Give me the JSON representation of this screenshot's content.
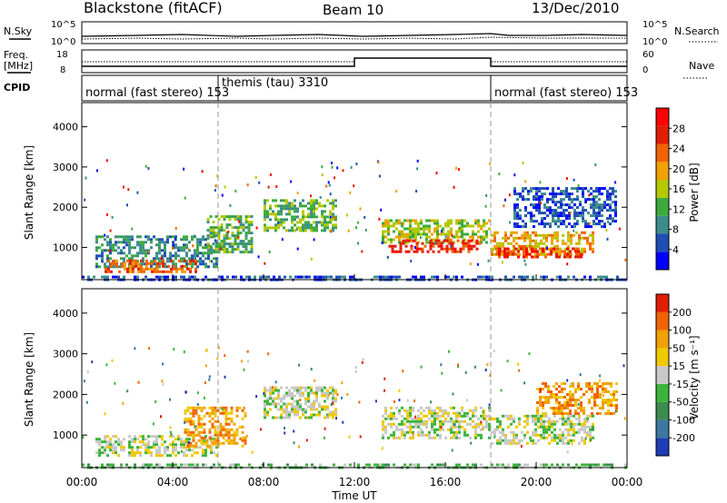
{
  "header": {
    "title": "Blackstone (fitACF)",
    "beam": "Beam 10",
    "date": "13/Dec/2010"
  },
  "top_panel": {
    "left_label": "N.Sky",
    "right_label": "N.Search",
    "left_ticks": [
      "10^5",
      "10^0"
    ],
    "right_ticks": [
      "10^5",
      "10^0"
    ]
  },
  "freq_panel": {
    "left_label_1": "Freq.",
    "left_label_2": "[MHz]",
    "right_label": "Nave",
    "left_ticks": [
      "18",
      "8"
    ],
    "right_ticks": [
      "60",
      "0"
    ]
  },
  "cpid_panel": {
    "label": "CPID",
    "segments": [
      {
        "start_hour": 0,
        "end_hour": 6,
        "label": "normal (fast stereo) 153"
      },
      {
        "start_hour": 6,
        "end_hour": 18,
        "label": "themis (tau) 3310"
      },
      {
        "start_hour": 18,
        "end_hour": 24,
        "label": "normal (fast stereo) 153"
      }
    ]
  },
  "chart_data": [
    {
      "type": "heatmap",
      "name": "power",
      "ylabel": "Slant Range [km]",
      "xlabel": "",
      "yticks": [
        1000,
        2000,
        3000,
        4000
      ],
      "ylim": [
        200,
        4600
      ],
      "xlim": [
        0,
        24
      ],
      "colorbar": {
        "label": "Power [dB]",
        "ticks": [
          "4",
          "8",
          "12",
          "16",
          "20",
          "24",
          "28"
        ],
        "colors": [
          "#0000ff",
          "#1f4fb4",
          "#3c8c8c",
          "#3caa3c",
          "#b4c800",
          "#f0a000",
          "#f06400",
          "#e01e00",
          "#ff0000"
        ]
      },
      "regions": [
        {
          "x0": 0.6,
          "x1": 6.0,
          "y0": 500,
          "y1": 1300,
          "level": 2
        },
        {
          "x0": 1.0,
          "x1": 5.0,
          "y0": 400,
          "y1": 700,
          "level": 6
        },
        {
          "x0": 0.0,
          "x1": 24.0,
          "y0": 200,
          "y1": 300,
          "level": 1
        },
        {
          "x0": 5.5,
          "x1": 7.5,
          "y0": 900,
          "y1": 1800,
          "level": 3
        },
        {
          "x0": 8.0,
          "x1": 11.2,
          "y0": 1400,
          "y1": 2200,
          "level": 3
        },
        {
          "x0": 13.2,
          "x1": 18.0,
          "y0": 1100,
          "y1": 1700,
          "level": 4
        },
        {
          "x0": 13.5,
          "x1": 17.5,
          "y0": 900,
          "y1": 1200,
          "level": 7
        },
        {
          "x0": 18.0,
          "x1": 22.5,
          "y0": 800,
          "y1": 1400,
          "level": 5
        },
        {
          "x0": 18.2,
          "x1": 22.0,
          "y0": 750,
          "y1": 1000,
          "level": 7
        },
        {
          "x0": 19.0,
          "x1": 23.5,
          "y0": 1500,
          "y1": 2500,
          "level": 1
        }
      ]
    },
    {
      "type": "heatmap",
      "name": "velocity",
      "ylabel": "Slant Range [km]",
      "xlabel": "Time UT",
      "xticks": [
        "00:00",
        "04:00",
        "08:00",
        "12:00",
        "16:00",
        "20:00",
        "00:00"
      ],
      "yticks": [
        1000,
        2000,
        3000,
        4000
      ],
      "ylim": [
        200,
        4600
      ],
      "xlim": [
        0,
        24
      ],
      "colorbar": {
        "label": "Velocity [m s⁻¹]",
        "ticks": [
          "200",
          "100",
          "50",
          "15",
          "-15",
          "-50",
          "-100",
          "-200"
        ],
        "colors": [
          "#1e3cb4",
          "#3c78a0",
          "#3c8c50",
          "#3cb43c",
          "#c8c8c8",
          "#f0c800",
          "#f0a000",
          "#f06400",
          "#e01e00"
        ]
      },
      "regions": [
        {
          "x0": 0.6,
          "x1": 6.0,
          "y0": 500,
          "y1": 1000,
          "level": 4
        },
        {
          "x0": 4.5,
          "x1": 7.2,
          "y0": 700,
          "y1": 1700,
          "level": 6
        },
        {
          "x0": 0.0,
          "x1": 24.0,
          "y0": 200,
          "y1": 300,
          "level": 3
        },
        {
          "x0": 8.0,
          "x1": 11.2,
          "y0": 1400,
          "y1": 2200,
          "level": 4
        },
        {
          "x0": 13.2,
          "x1": 18.0,
          "y0": 900,
          "y1": 1700,
          "level": 4
        },
        {
          "x0": 18.0,
          "x1": 22.5,
          "y0": 800,
          "y1": 1500,
          "level": 4
        },
        {
          "x0": 20.0,
          "x1": 23.5,
          "y0": 1500,
          "y1": 2300,
          "level": 6
        }
      ]
    }
  ]
}
